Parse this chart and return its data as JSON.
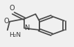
{
  "bg_color": "#f0f0f0",
  "bond_color": "#4a4a4a",
  "bond_width": 1.3,
  "figsize": [
    1.07,
    0.69
  ],
  "dpi": 100,
  "text_color": "#333333",
  "font_size": 6.5,
  "N_label": "N",
  "O_label": "O",
  "H2N_label": "H₂N"
}
